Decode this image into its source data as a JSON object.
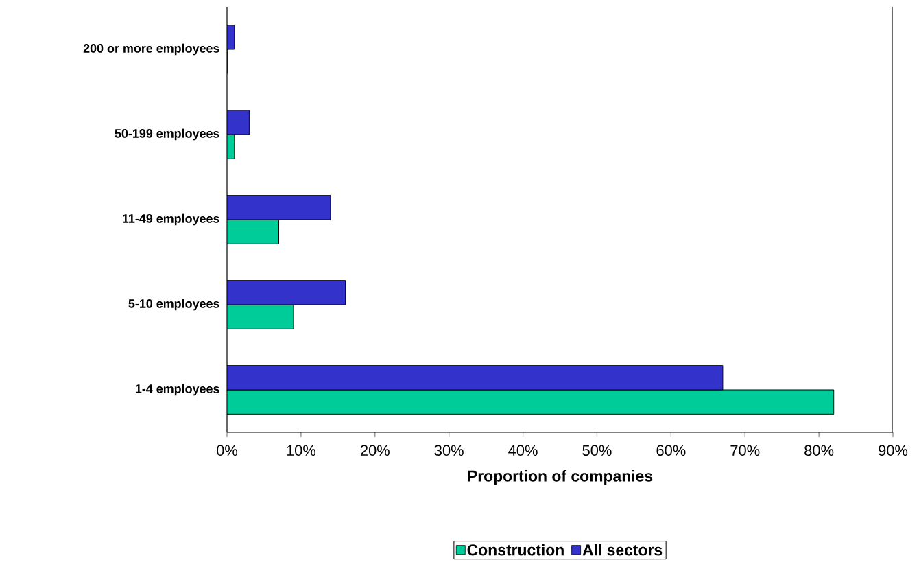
{
  "chart_data": {
    "type": "bar",
    "orientation": "horizontal",
    "xlabel": "Proportion of companies",
    "categories": [
      "200 or more employees",
      "50-199 employees",
      "11-49 employees",
      "5-10 employees",
      "1-4 employees"
    ],
    "series": [
      {
        "name": "Construction",
        "color": "#00cc99",
        "values": [
          0,
          1,
          7,
          9,
          82
        ]
      },
      {
        "name": "All sectors",
        "color": "#3333cc",
        "values": [
          1,
          3,
          14,
          16,
          67
        ]
      }
    ],
    "xlim": [
      0,
      90
    ],
    "xticks": [
      {
        "value": 0,
        "label": "0%"
      },
      {
        "value": 10,
        "label": "10%"
      },
      {
        "value": 20,
        "label": "20%"
      },
      {
        "value": 30,
        "label": "30%"
      },
      {
        "value": 40,
        "label": "40%"
      },
      {
        "value": 50,
        "label": "50%"
      },
      {
        "value": 60,
        "label": "60%"
      },
      {
        "value": 70,
        "label": "70%"
      },
      {
        "value": 80,
        "label": "80%"
      },
      {
        "value": 90,
        "label": "90%"
      }
    ],
    "legend": "bottom"
  }
}
